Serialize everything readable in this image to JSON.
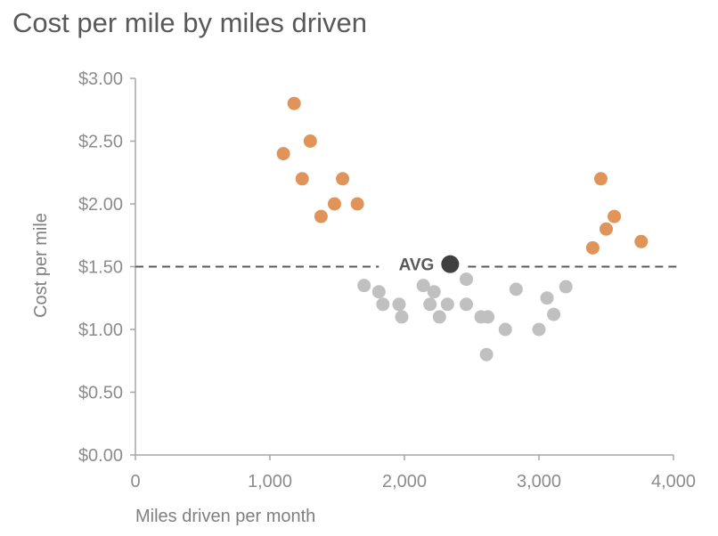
{
  "chart_data": {
    "type": "scatter",
    "title": "Cost per mile by miles driven",
    "xlabel": "Miles driven per month",
    "ylabel": "Cost per mile",
    "xlim": [
      0,
      4000
    ],
    "ylim": [
      0,
      3.0
    ],
    "xticks": [
      0,
      1000,
      2000,
      3000,
      4000
    ],
    "xtick_labels": [
      "0",
      "1,000",
      "2,000",
      "3,000",
      "4,000"
    ],
    "yticks": [
      0,
      0.5,
      1.0,
      1.5,
      2.0,
      2.5,
      3.0
    ],
    "ytick_labels": [
      "$0.00",
      "$0.50",
      "$1.00",
      "$1.50",
      "$2.00",
      "$2.50",
      "$3.00"
    ],
    "grid": false,
    "reference_line": {
      "label": "AVG",
      "y": 1.5,
      "style": "dashed",
      "color": "#595959"
    },
    "avg_point": {
      "label": "AVG",
      "x": 2340,
      "y": 1.52,
      "color": "#404040"
    },
    "series": [
      {
        "color": "#e0945a",
        "points": [
          [
            1100,
            2.4
          ],
          [
            1180,
            2.8
          ],
          [
            1240,
            2.2
          ],
          [
            1300,
            2.5
          ],
          [
            1380,
            1.9
          ],
          [
            1480,
            2.0
          ],
          [
            1540,
            2.2
          ],
          [
            1650,
            2.0
          ],
          [
            3400,
            1.65
          ],
          [
            3460,
            2.2
          ],
          [
            3500,
            1.8
          ],
          [
            3560,
            1.9
          ],
          [
            3760,
            1.7
          ]
        ]
      },
      {
        "color": "#c0c0c0",
        "points": [
          [
            1700,
            1.35
          ],
          [
            1810,
            1.3
          ],
          [
            1840,
            1.2
          ],
          [
            1960,
            1.2
          ],
          [
            1980,
            1.1
          ],
          [
            2140,
            1.35
          ],
          [
            2190,
            1.2
          ],
          [
            2220,
            1.3
          ],
          [
            2260,
            1.1
          ],
          [
            2320,
            1.2
          ],
          [
            2460,
            1.4
          ],
          [
            2460,
            1.2
          ],
          [
            2570,
            1.1
          ],
          [
            2620,
            1.1
          ],
          [
            2610,
            0.8
          ],
          [
            2750,
            1.0
          ],
          [
            2830,
            1.32
          ],
          [
            3000,
            1.0
          ],
          [
            3060,
            1.25
          ],
          [
            3110,
            1.12
          ],
          [
            3200,
            1.34
          ]
        ]
      }
    ]
  }
}
